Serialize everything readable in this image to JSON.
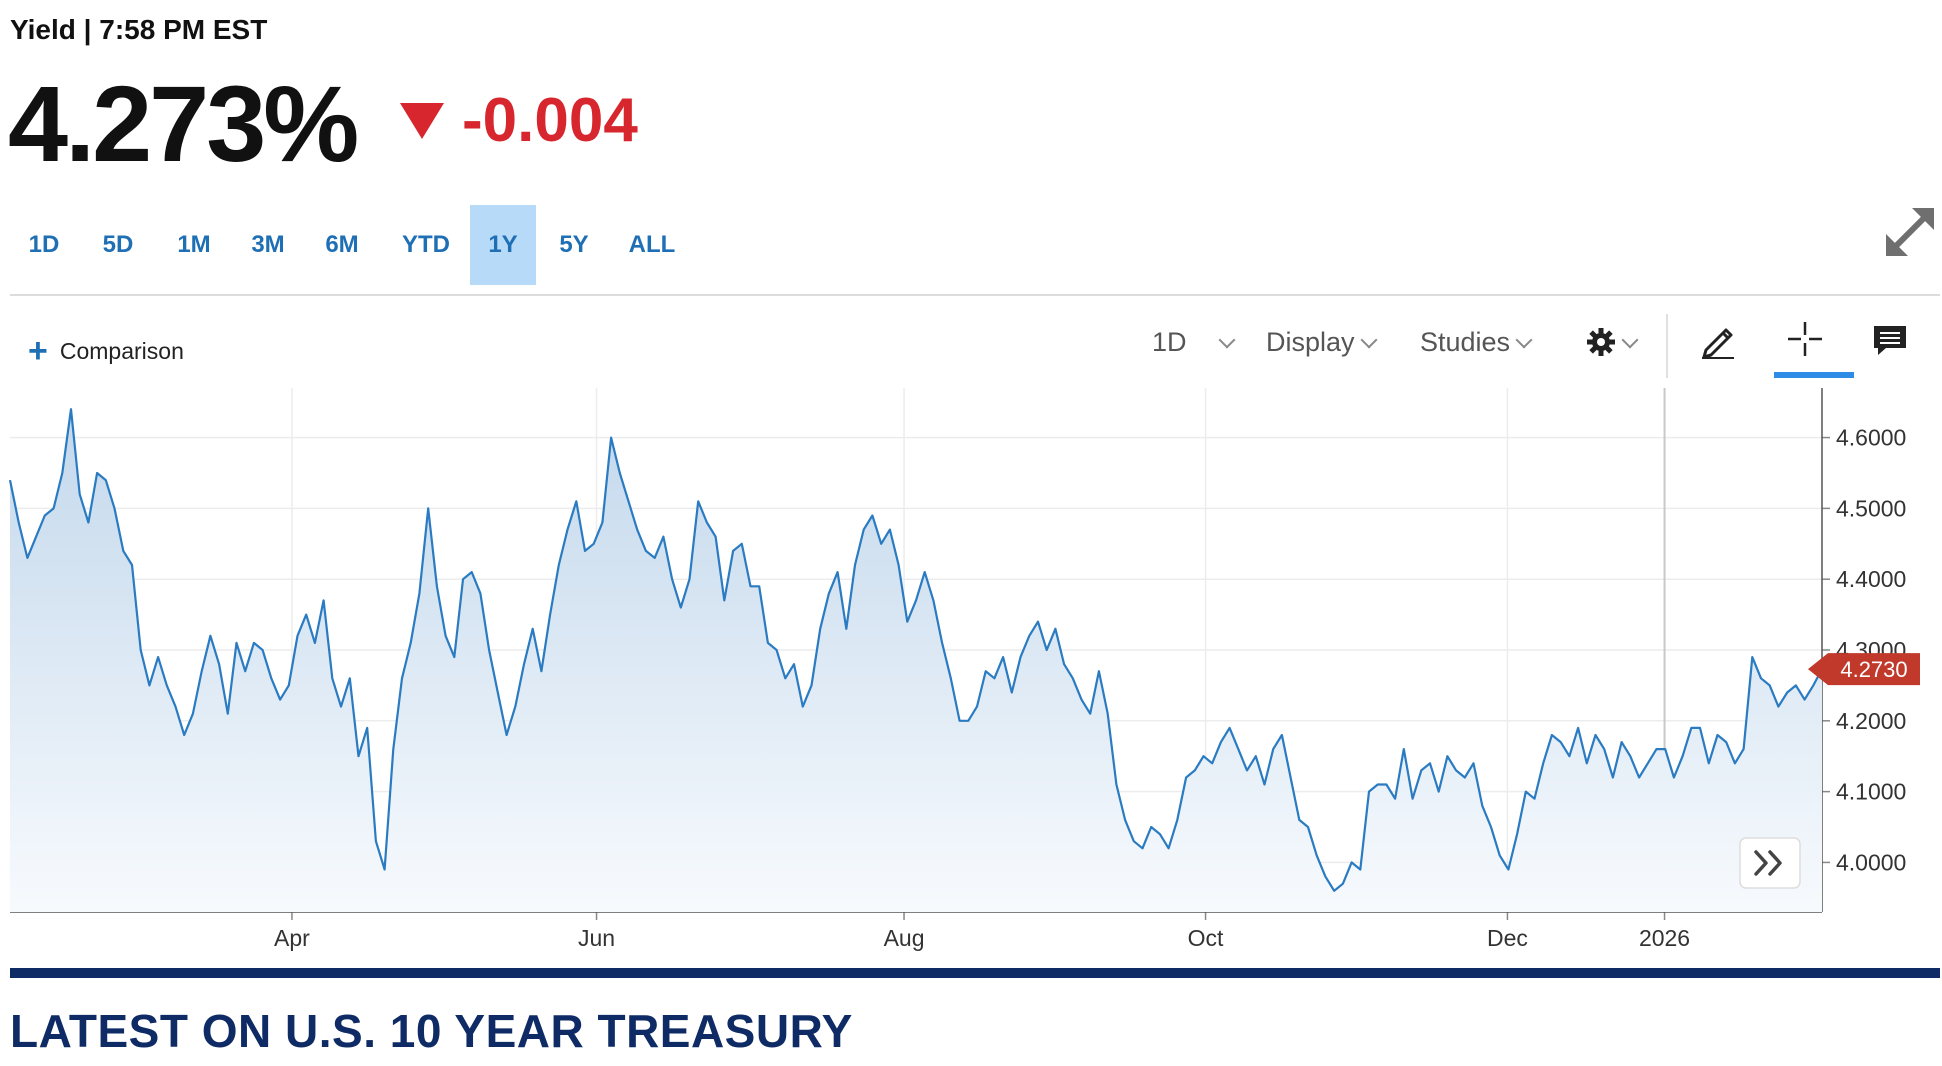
{
  "header": {
    "label": "Yield | 7:58 PM EST",
    "price": "4.273%",
    "change": "-0.004",
    "change_color": "#d7262d",
    "change_direction_icon": "down-triangle-icon"
  },
  "range_tabs": [
    {
      "label": "1D",
      "active": false
    },
    {
      "label": "5D",
      "active": false
    },
    {
      "label": "1M",
      "active": false
    },
    {
      "label": "3M",
      "active": false
    },
    {
      "label": "6M",
      "active": false
    },
    {
      "label": "YTD",
      "active": false
    },
    {
      "label": "1Y",
      "active": true
    },
    {
      "label": "5Y",
      "active": false
    },
    {
      "label": "ALL",
      "active": false
    }
  ],
  "toolbar": {
    "comparison_label": "Comparison",
    "interval_label": "1D",
    "display_label": "Display",
    "studies_label": "Studies",
    "icons": [
      "settings-gear-icon",
      "draw-pencil-icon",
      "crosshair-icon",
      "comment-icon",
      "expand-icon",
      "scroll-right-icon"
    ]
  },
  "chart_data": {
    "type": "area",
    "ylim": [
      3.93,
      4.67
    ],
    "y_ticks": [
      "4.6000",
      "4.5000",
      "4.4000",
      "4.3000",
      "4.2000",
      "4.1000",
      "4.0000"
    ],
    "x_ticks": [
      "Apr",
      "Jun",
      "Aug",
      "Oct",
      "Dec",
      "2026"
    ],
    "last_value_label": "4.2730",
    "line_color": "#2a7bc1",
    "fill_top_color": "#c3d8ec",
    "fill_bottom_color": "#f7fafd",
    "series": [
      {
        "values": [
          4.54,
          4.48,
          4.43,
          4.46,
          4.49,
          4.5,
          4.55,
          4.64,
          4.52,
          4.48,
          4.55,
          4.54,
          4.5,
          4.44,
          4.42,
          4.3,
          4.25,
          4.29,
          4.25,
          4.22,
          4.18,
          4.21,
          4.27,
          4.32,
          4.28,
          4.21,
          4.31,
          4.27,
          4.31,
          4.3,
          4.26,
          4.23,
          4.25,
          4.32,
          4.35,
          4.31,
          4.37,
          4.26,
          4.22,
          4.26,
          4.15,
          4.19,
          4.03,
          3.99,
          4.16,
          4.26,
          4.31,
          4.38,
          4.5,
          4.39,
          4.32,
          4.29,
          4.4,
          4.41,
          4.38,
          4.3,
          4.24,
          4.18,
          4.22,
          4.28,
          4.33,
          4.27,
          4.35,
          4.42,
          4.47,
          4.51,
          4.44,
          4.45,
          4.48,
          4.6,
          4.55,
          4.51,
          4.47,
          4.44,
          4.43,
          4.46,
          4.4,
          4.36,
          4.4,
          4.51,
          4.48,
          4.46,
          4.37,
          4.44,
          4.45,
          4.39,
          4.39,
          4.31,
          4.3,
          4.26,
          4.28,
          4.22,
          4.25,
          4.33,
          4.38,
          4.41,
          4.33,
          4.42,
          4.47,
          4.49,
          4.45,
          4.47,
          4.42,
          4.34,
          4.37,
          4.41,
          4.37,
          4.31,
          4.26,
          4.2,
          4.2,
          4.22,
          4.27,
          4.26,
          4.29,
          4.24,
          4.29,
          4.32,
          4.34,
          4.3,
          4.33,
          4.28,
          4.26,
          4.23,
          4.21,
          4.27,
          4.21,
          4.11,
          4.06,
          4.03,
          4.02,
          4.05,
          4.04,
          4.02,
          4.06,
          4.12,
          4.13,
          4.15,
          4.14,
          4.17,
          4.19,
          4.16,
          4.13,
          4.15,
          4.11,
          4.16,
          4.18,
          4.12,
          4.06,
          4.05,
          4.01,
          3.98,
          3.96,
          3.97,
          4.0,
          3.99,
          4.1,
          4.11,
          4.11,
          4.09,
          4.16,
          4.09,
          4.13,
          4.14,
          4.1,
          4.15,
          4.13,
          4.12,
          4.14,
          4.08,
          4.05,
          4.01,
          3.99,
          4.04,
          4.1,
          4.09,
          4.14,
          4.18,
          4.17,
          4.15,
          4.19,
          4.14,
          4.18,
          4.16,
          4.12,
          4.17,
          4.15,
          4.12,
          4.14,
          4.16,
          4.16,
          4.12,
          4.15,
          4.19,
          4.19,
          4.14,
          4.18,
          4.17,
          4.14,
          4.16,
          4.29,
          4.26,
          4.25,
          4.22,
          4.24,
          4.25,
          4.23,
          4.25,
          4.273
        ]
      }
    ]
  }
}
